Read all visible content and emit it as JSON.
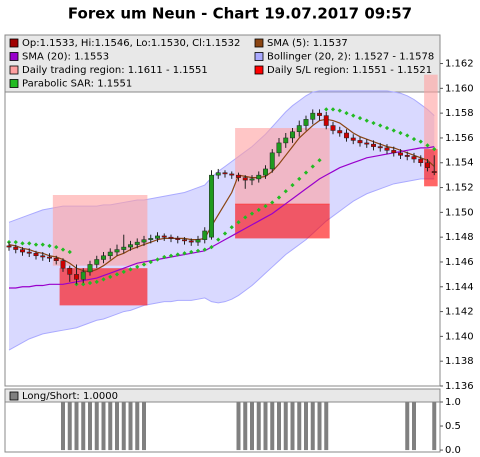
{
  "chart_data": [
    {
      "type": "candlestick",
      "title": "Forex um Neun - Chart 19.07.2017 09:57",
      "candles": {
        "name": "Op:1.1533, Hi:1.1546, Lo:1.1530, Cl:1.1532",
        "color": "#a00000",
        "up_color": "#1e9a1e",
        "down_color": "#cc0000",
        "open": [
          1.1473,
          1.1472,
          1.147,
          1.1468,
          1.1467,
          1.1465,
          1.1464,
          1.1463,
          1.1461,
          1.1455,
          1.145,
          1.1446,
          1.1452,
          1.1458,
          1.1462,
          1.1465,
          1.1468,
          1.147,
          1.1472,
          1.1474,
          1.1476,
          1.1478,
          1.1479,
          1.1481,
          1.148,
          1.1479,
          1.1478,
          1.1477,
          1.1476,
          1.1478,
          1.148,
          1.153,
          1.1532,
          1.1531,
          1.153,
          1.1528,
          1.1526,
          1.1527,
          1.153,
          1.1535,
          1.1548,
          1.1556,
          1.156,
          1.1565,
          1.157,
          1.1575,
          1.158,
          1.1578,
          1.157,
          1.1566,
          1.1564,
          1.156,
          1.1558,
          1.1556,
          1.1555,
          1.1553,
          1.1552,
          1.155,
          1.1548,
          1.1546,
          1.1545,
          1.1543,
          1.154,
          1.1533
        ],
        "high": [
          1.1476,
          1.1474,
          1.1472,
          1.1471,
          1.1469,
          1.1468,
          1.1467,
          1.1465,
          1.1463,
          1.1457,
          1.1458,
          1.1455,
          1.1461,
          1.1465,
          1.1468,
          1.1471,
          1.1474,
          1.1482,
          1.1477,
          1.1479,
          1.1481,
          1.1482,
          1.1484,
          1.1483,
          1.1482,
          1.1481,
          1.148,
          1.1479,
          1.1481,
          1.1488,
          1.1534,
          1.1535,
          1.1534,
          1.1533,
          1.1532,
          1.153,
          1.153,
          1.1533,
          1.1538,
          1.1551,
          1.156,
          1.1564,
          1.1568,
          1.1574,
          1.1578,
          1.1583,
          1.1583,
          1.1581,
          1.1573,
          1.1569,
          1.1567,
          1.1563,
          1.1561,
          1.1559,
          1.1558,
          1.1556,
          1.1555,
          1.1553,
          1.1551,
          1.1549,
          1.1548,
          1.1546,
          1.1543,
          1.1546
        ],
        "low": [
          1.1469,
          1.1467,
          1.1465,
          1.1464,
          1.1462,
          1.1461,
          1.146,
          1.1458,
          1.1452,
          1.1444,
          1.1442,
          1.1443,
          1.1449,
          1.1455,
          1.1459,
          1.1462,
          1.1465,
          1.1467,
          1.1469,
          1.1471,
          1.1473,
          1.1475,
          1.1476,
          1.1477,
          1.1476,
          1.1475,
          1.1474,
          1.1473,
          1.1473,
          1.1475,
          1.1478,
          1.1527,
          1.1528,
          1.1527,
          1.1525,
          1.1519,
          1.1522,
          1.1524,
          1.1527,
          1.1532,
          1.1545,
          1.1552,
          1.1556,
          1.1561,
          1.1566,
          1.1571,
          1.1574,
          1.1567,
          1.1563,
          1.1561,
          1.1557,
          1.1555,
          1.1553,
          1.1552,
          1.155,
          1.1549,
          1.1547,
          1.1545,
          1.1543,
          1.1542,
          1.154,
          1.1537,
          1.1533,
          1.153
        ],
        "close": [
          1.1472,
          1.147,
          1.1468,
          1.1467,
          1.1465,
          1.1464,
          1.1463,
          1.1461,
          1.1455,
          1.145,
          1.1446,
          1.1452,
          1.1458,
          1.1462,
          1.1465,
          1.1468,
          1.147,
          1.1472,
          1.1474,
          1.1476,
          1.1478,
          1.1479,
          1.1481,
          1.148,
          1.1479,
          1.1478,
          1.1477,
          1.1476,
          1.1478,
          1.1485,
          1.153,
          1.1532,
          1.1531,
          1.153,
          1.1528,
          1.1526,
          1.1527,
          1.153,
          1.1535,
          1.1548,
          1.1556,
          1.156,
          1.1565,
          1.157,
          1.1575,
          1.158,
          1.1578,
          1.157,
          1.1566,
          1.1564,
          1.156,
          1.1558,
          1.1556,
          1.1555,
          1.1553,
          1.1552,
          1.155,
          1.1548,
          1.1546,
          1.1545,
          1.1543,
          1.154,
          1.1536,
          1.1532
        ]
      },
      "series": [
        {
          "name": "SMA (5): 1.1537",
          "style": "line",
          "color": "#8b4513",
          "values": [
            1.1474,
            1.1473,
            1.1471,
            1.147,
            1.1468,
            1.1467,
            1.1465,
            1.1464,
            1.1462,
            1.1459,
            1.1455,
            1.1453,
            1.1452,
            1.1454,
            1.1457,
            1.1461,
            1.1465,
            1.1467,
            1.147,
            1.1472,
            1.1474,
            1.1476,
            1.1478,
            1.1479,
            1.1479,
            1.1479,
            1.1479,
            1.1478,
            1.1478,
            1.1479,
            1.1489,
            1.1498,
            1.1507,
            1.1516,
            1.153,
            1.1529,
            1.1528,
            1.1528,
            1.1529,
            1.1533,
            1.1539,
            1.1546,
            1.1553,
            1.156,
            1.1565,
            1.157,
            1.1574,
            1.1575,
            1.1574,
            1.1572,
            1.1568,
            1.1564,
            1.1561,
            1.1559,
            1.1557,
            1.1555,
            1.1553,
            1.1552,
            1.155,
            1.1548,
            1.1546,
            1.1544,
            1.1542,
            1.1537
          ]
        },
        {
          "name": "SMA (20): 1.1553",
          "style": "line",
          "color": "#9900cc",
          "values": [
            1.1439,
            1.1439,
            1.144,
            1.144,
            1.1441,
            1.1441,
            1.1442,
            1.1442,
            1.1442,
            1.1443,
            1.1444,
            1.1445,
            1.1446,
            1.1447,
            1.1449,
            1.1451,
            1.1453,
            1.1455,
            1.1457,
            1.1459,
            1.146,
            1.1461,
            1.1462,
            1.1463,
            1.1464,
            1.1465,
            1.1466,
            1.1467,
            1.1468,
            1.1469,
            1.1472,
            1.1475,
            1.1478,
            1.1481,
            1.1484,
            1.1487,
            1.149,
            1.1493,
            1.1496,
            1.1499,
            1.1503,
            1.1507,
            1.1511,
            1.1515,
            1.1519,
            1.1523,
            1.1527,
            1.153,
            1.1533,
            1.1536,
            1.1538,
            1.154,
            1.1542,
            1.1544,
            1.1545,
            1.1546,
            1.1547,
            1.1548,
            1.1549,
            1.155,
            1.1551,
            1.1552,
            1.1552,
            1.1553
          ]
        },
        {
          "name": "Bollinger (20, 2): 1.1527 - 1.1578",
          "style": "band",
          "color": "#aaaaff",
          "upper": [
            1.1492,
            1.1494,
            1.1496,
            1.1498,
            1.15,
            1.1502,
            1.1503,
            1.1504,
            1.1505,
            1.1505,
            1.1505,
            1.1505,
            1.1505,
            1.1505,
            1.1506,
            1.1506,
            1.1507,
            1.1508,
            1.1509,
            1.151,
            1.151,
            1.1511,
            1.1512,
            1.1513,
            1.1514,
            1.1515,
            1.1516,
            1.1518,
            1.152,
            1.1522,
            1.1528,
            1.1533,
            1.1537,
            1.1541,
            1.1545,
            1.1549,
            1.1553,
            1.1558,
            1.1563,
            1.1569,
            1.1575,
            1.1581,
            1.1586,
            1.159,
            1.1594,
            1.1597,
            1.1598,
            1.1598,
            1.1598,
            1.1598,
            1.1598,
            1.1598,
            1.1598,
            1.1598,
            1.1598,
            1.1598,
            1.1598,
            1.1597,
            1.1596,
            1.1594,
            1.1591,
            1.1587,
            1.1583,
            1.1578
          ],
          "lower": [
            1.1389,
            1.1392,
            1.1395,
            1.1398,
            1.14,
            1.1402,
            1.1403,
            1.1404,
            1.1405,
            1.1406,
            1.1407,
            1.1409,
            1.1411,
            1.1413,
            1.1414,
            1.1416,
            1.1418,
            1.142,
            1.1421,
            1.1423,
            1.1425,
            1.1426,
            1.1427,
            1.1428,
            1.1428,
            1.1429,
            1.1429,
            1.1429,
            1.143,
            1.1431,
            1.1428,
            1.1427,
            1.1428,
            1.143,
            1.1433,
            1.1437,
            1.1441,
            1.1446,
            1.1451,
            1.1456,
            1.1461,
            1.1466,
            1.147,
            1.1474,
            1.1478,
            1.1483,
            1.1488,
            1.1493,
            1.1497,
            1.1501,
            1.1505,
            1.1509,
            1.1512,
            1.1515,
            1.1517,
            1.1519,
            1.1521,
            1.1523,
            1.1524,
            1.1525,
            1.1526,
            1.1527,
            1.1527,
            1.1527
          ]
        }
      ],
      "regions": [
        {
          "name": "Daily trading region: 1.1611 - 1.1551",
          "color": "#ffa0a0",
          "boxes": [
            {
              "from": 7,
              "to": 20,
              "high": 1.1514,
              "low": 1.1457
            },
            {
              "from": 34,
              "to": 47,
              "high": 1.1568,
              "low": 1.1506
            },
            {
              "from": 62,
              "to": 63,
              "high": 1.1611,
              "low": 1.1551
            }
          ]
        },
        {
          "name": "Daily S/L region: 1.1551 - 1.1521",
          "color": "#ff0000",
          "boxes": [
            {
              "from": 8,
              "to": 20,
              "high": 1.1455,
              "low": 1.1425
            },
            {
              "from": 34,
              "to": 47,
              "high": 1.1507,
              "low": 1.1479
            },
            {
              "from": 62,
              "to": 63,
              "high": 1.1551,
              "low": 1.1521
            }
          ]
        }
      ],
      "sar": {
        "name": "Parabolic SAR: 1.1551",
        "color": "#22bb22",
        "values": [
          1.1476,
          1.1476,
          1.1475,
          1.1475,
          1.1474,
          1.1474,
          1.1473,
          1.1472,
          1.147,
          1.1468,
          1.1442,
          1.1442,
          1.1443,
          1.1444,
          1.1446,
          1.1448,
          1.145,
          1.1452,
          1.1454,
          1.1456,
          1.1458,
          1.146,
          1.1462,
          1.1464,
          1.1465,
          1.1466,
          1.1467,
          1.1468,
          1.1469,
          1.147,
          1.1472,
          1.1478,
          1.1483,
          1.1488,
          1.1492,
          1.1496,
          1.1499,
          1.1502,
          1.1505,
          1.1508,
          1.1512,
          1.1517,
          1.1522,
          1.1527,
          1.1532,
          1.1537,
          1.1542,
          1.1583,
          1.1583,
          1.1582,
          1.158,
          1.1578,
          1.1576,
          1.1574,
          1.1572,
          1.157,
          1.1568,
          1.1566,
          1.1564,
          1.1562,
          1.1559,
          1.1557,
          1.1554,
          1.1551
        ]
      },
      "ylim": [
        1.136,
        1.1643
      ],
      "yticks": [
        1.136,
        1.138,
        {
          "value": 1.14,
          "label": "1.140"
        },
        1.142,
        1.144,
        1.146,
        1.148,
        {
          "value": 1.15,
          "label": "1.150"
        },
        1.152,
        1.154,
        1.156,
        1.158,
        {
          "value": 1.16,
          "label": "1.160"
        },
        1.162
      ]
    },
    {
      "type": "bar",
      "series": [
        {
          "name": "Long/Short: 1.0000",
          "color": "#808080",
          "values": [
            0,
            0,
            0,
            0,
            0,
            0,
            0,
            0,
            1,
            1,
            1,
            1,
            1,
            1,
            1,
            1,
            1,
            1,
            1,
            1,
            1,
            0,
            0,
            0,
            0,
            0,
            0,
            0,
            0,
            0,
            0,
            0,
            0,
            0,
            1,
            1,
            1,
            1,
            1,
            1,
            1,
            1,
            1,
            1,
            1,
            1,
            1,
            1,
            0,
            0,
            0,
            0,
            0,
            0,
            0,
            0,
            0,
            0,
            0,
            1,
            1,
            0,
            0,
            1
          ]
        }
      ],
      "ylim": [
        -0.04,
        1.27
      ],
      "yticks": [
        {
          "value": 0,
          "label": "0.0"
        },
        {
          "value": 0.5,
          "label": "0.5"
        },
        {
          "value": 1,
          "label": "1.0"
        }
      ]
    }
  ]
}
